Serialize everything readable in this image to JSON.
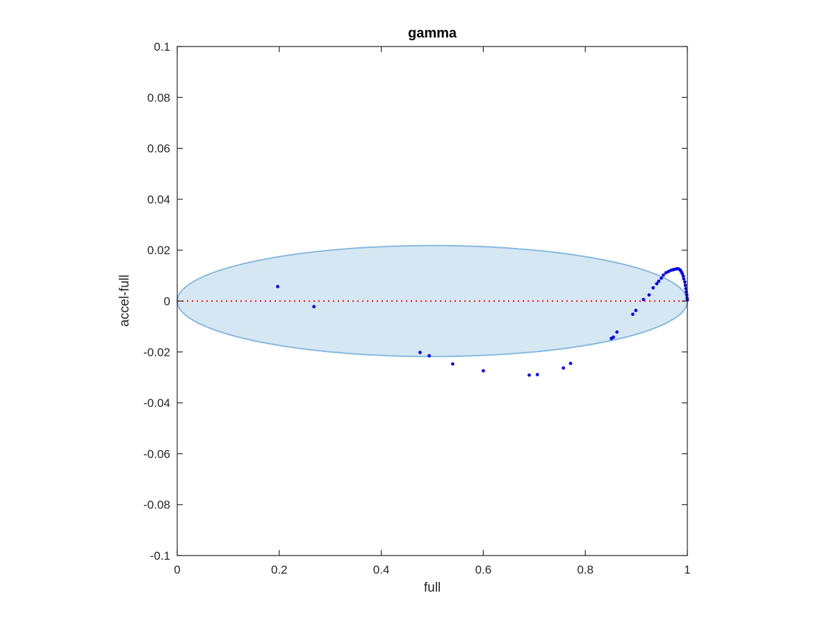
{
  "chart_data": {
    "type": "scatter",
    "title": "gamma",
    "xlabel": "full",
    "ylabel": "accel-full",
    "xlim": [
      0,
      1
    ],
    "ylim": [
      -0.1,
      0.1
    ],
    "x_ticks": [
      0,
      0.2,
      0.4,
      0.6,
      0.8,
      1
    ],
    "x_tick_labels": [
      "0",
      "0.2",
      "0.4",
      "0.6",
      "0.8",
      "1"
    ],
    "y_ticks": [
      -0.1,
      -0.08,
      -0.06,
      -0.04,
      -0.02,
      0,
      0.02,
      0.04,
      0.06,
      0.08,
      0.1
    ],
    "y_tick_labels": [
      "-0.1",
      "-0.08",
      "-0.06",
      "-0.04",
      "-0.02",
      "0",
      "0.02",
      "0.04",
      "0.06",
      "0.08",
      "0.1"
    ],
    "grid": false,
    "reference_line": {
      "y": 0,
      "style": "dotted",
      "color": "#ff0000"
    },
    "ellipse": {
      "center_x": 0.5,
      "center_y": 0,
      "radius_x": 0.5,
      "radius_y": 0.0218,
      "fill": "#d6e7f4",
      "stroke": "#86b9de"
    },
    "series": [
      {
        "color": "#0000ee",
        "points": [
          [
            0.197,
            0.0057
          ],
          [
            0.268,
            -0.0022
          ],
          [
            0.476,
            -0.0202
          ],
          [
            0.494,
            -0.0215
          ],
          [
            0.54,
            -0.0247
          ],
          [
            0.6,
            -0.0274
          ],
          [
            0.69,
            -0.0291
          ],
          [
            0.706,
            -0.0289
          ],
          [
            0.757,
            -0.0263
          ],
          [
            0.771,
            -0.0245
          ],
          [
            0.851,
            -0.0147
          ],
          [
            0.855,
            -0.0142
          ],
          [
            0.862,
            -0.0122
          ],
          [
            0.893,
            -0.0052
          ],
          [
            0.899,
            -0.0037
          ],
          [
            0.914,
            0.0006
          ],
          [
            0.925,
            0.0024
          ],
          [
            0.933,
            0.0052
          ],
          [
            0.94,
            0.0068
          ],
          [
            0.944,
            0.0078
          ],
          [
            0.949,
            0.009
          ],
          [
            0.953,
            0.0102
          ],
          [
            0.958,
            0.0111
          ],
          [
            0.963,
            0.0116
          ],
          [
            0.968,
            0.0121
          ],
          [
            0.972,
            0.0123
          ],
          [
            0.976,
            0.0125
          ],
          [
            0.98,
            0.0127
          ],
          [
            0.983,
            0.0126
          ],
          [
            0.986,
            0.0122
          ],
          [
            0.988,
            0.0116
          ],
          [
            0.99,
            0.0108
          ],
          [
            0.992,
            0.0098
          ],
          [
            0.993,
            0.0087
          ],
          [
            0.995,
            0.0075
          ],
          [
            0.996,
            0.0062
          ],
          [
            0.997,
            0.0049
          ],
          [
            0.998,
            0.0036
          ],
          [
            0.999,
            0.0024
          ],
          [
            0.9995,
            0.0012
          ],
          [
            1.0,
            0.0004
          ]
        ]
      }
    ]
  }
}
